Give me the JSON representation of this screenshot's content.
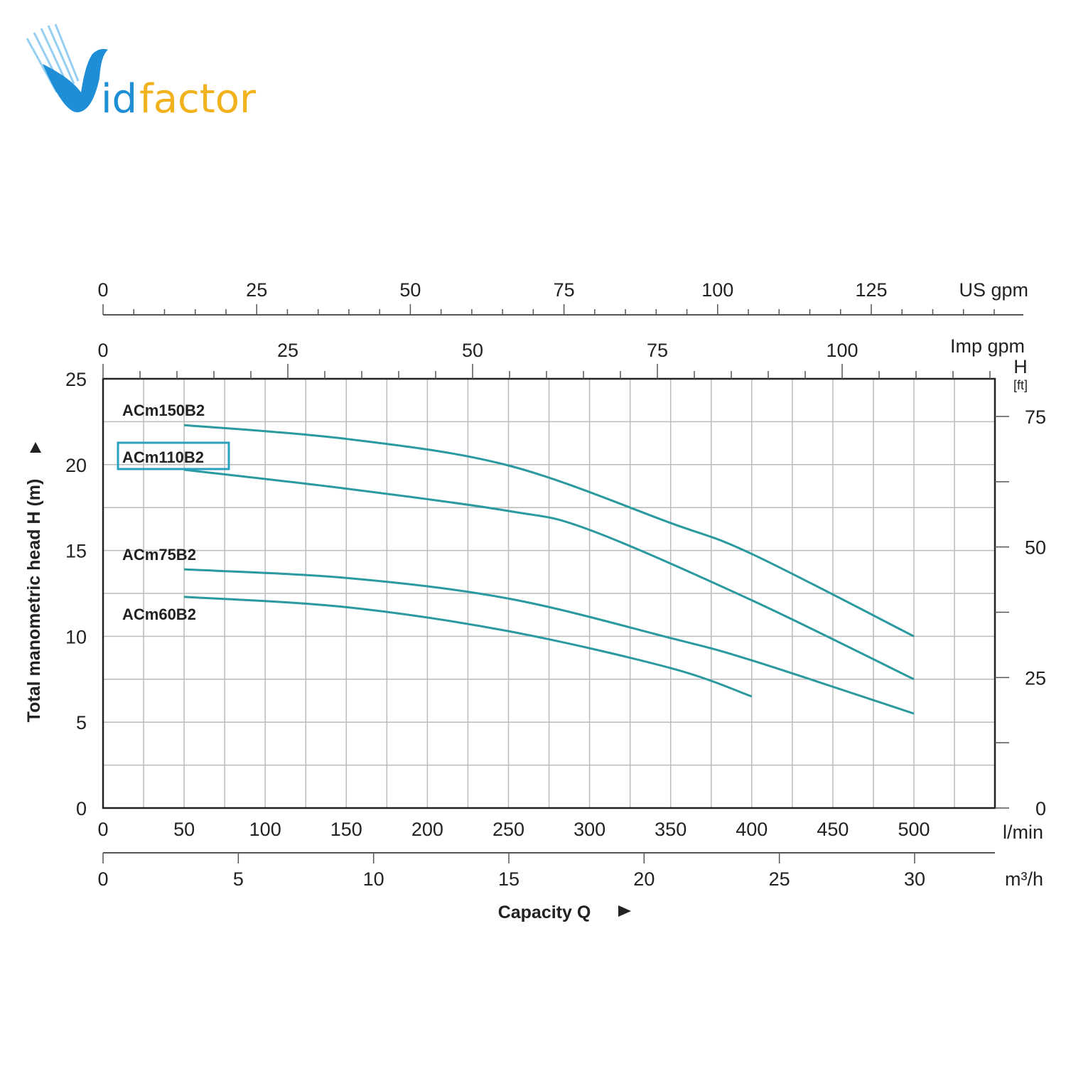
{
  "logo": {
    "text_v": "V",
    "text_id": "id",
    "text_factor": "factor",
    "brand_blue": "#1e8fd6",
    "brand_yellow": "#f2b21e"
  },
  "chart_data": {
    "type": "line",
    "title": "",
    "xlabel": "Capacity Q",
    "ylabel": "Total manometric head H (m)",
    "x_unit": "l/min",
    "xlim": [
      0,
      550
    ],
    "ylim": [
      0,
      25
    ],
    "x_ticks": [
      0,
      50,
      100,
      150,
      200,
      250,
      300,
      350,
      400,
      450,
      500
    ],
    "y_ticks": [
      0,
      5,
      10,
      15,
      20,
      25
    ],
    "grid": true,
    "curve_color": "#2a9aa0",
    "highlight_color": "#2aa0c0",
    "series": [
      {
        "name": "ACm150B2",
        "x": [
          50,
          150,
          250,
          350,
          400,
          500
        ],
        "y": [
          22.3,
          21.5,
          19.95,
          16.6,
          14.8,
          10.0
        ]
      },
      {
        "name": "ACm110B2",
        "x": [
          50,
          150,
          250,
          300,
          400,
          500
        ],
        "y": [
          19.7,
          18.6,
          17.3,
          16.2,
          12.1,
          7.5
        ],
        "highlighted": true
      },
      {
        "name": "ACm75B2",
        "x": [
          50,
          150,
          250,
          350,
          400,
          500
        ],
        "y": [
          13.9,
          13.4,
          12.2,
          9.9,
          8.6,
          5.5
        ]
      },
      {
        "name": "ACm60B2",
        "x": [
          50,
          150,
          250,
          350,
          400
        ],
        "y": [
          12.3,
          11.7,
          10.3,
          8.15,
          6.5
        ]
      }
    ],
    "secondary_axes": {
      "us_gpm": {
        "label": "US gpm",
        "ticks": [
          0,
          25,
          50,
          75,
          100,
          125
        ]
      },
      "imp_gpm": {
        "label": "Imp gpm",
        "ticks": [
          0,
          25,
          50,
          75,
          100
        ]
      },
      "m3h": {
        "label": "m³/h",
        "ticks": [
          0,
          5,
          10,
          15,
          20,
          25,
          30
        ]
      },
      "ft": {
        "label_top": "H",
        "label_unit": "[ft]",
        "ticks": [
          0,
          25,
          50,
          75
        ]
      }
    }
  }
}
